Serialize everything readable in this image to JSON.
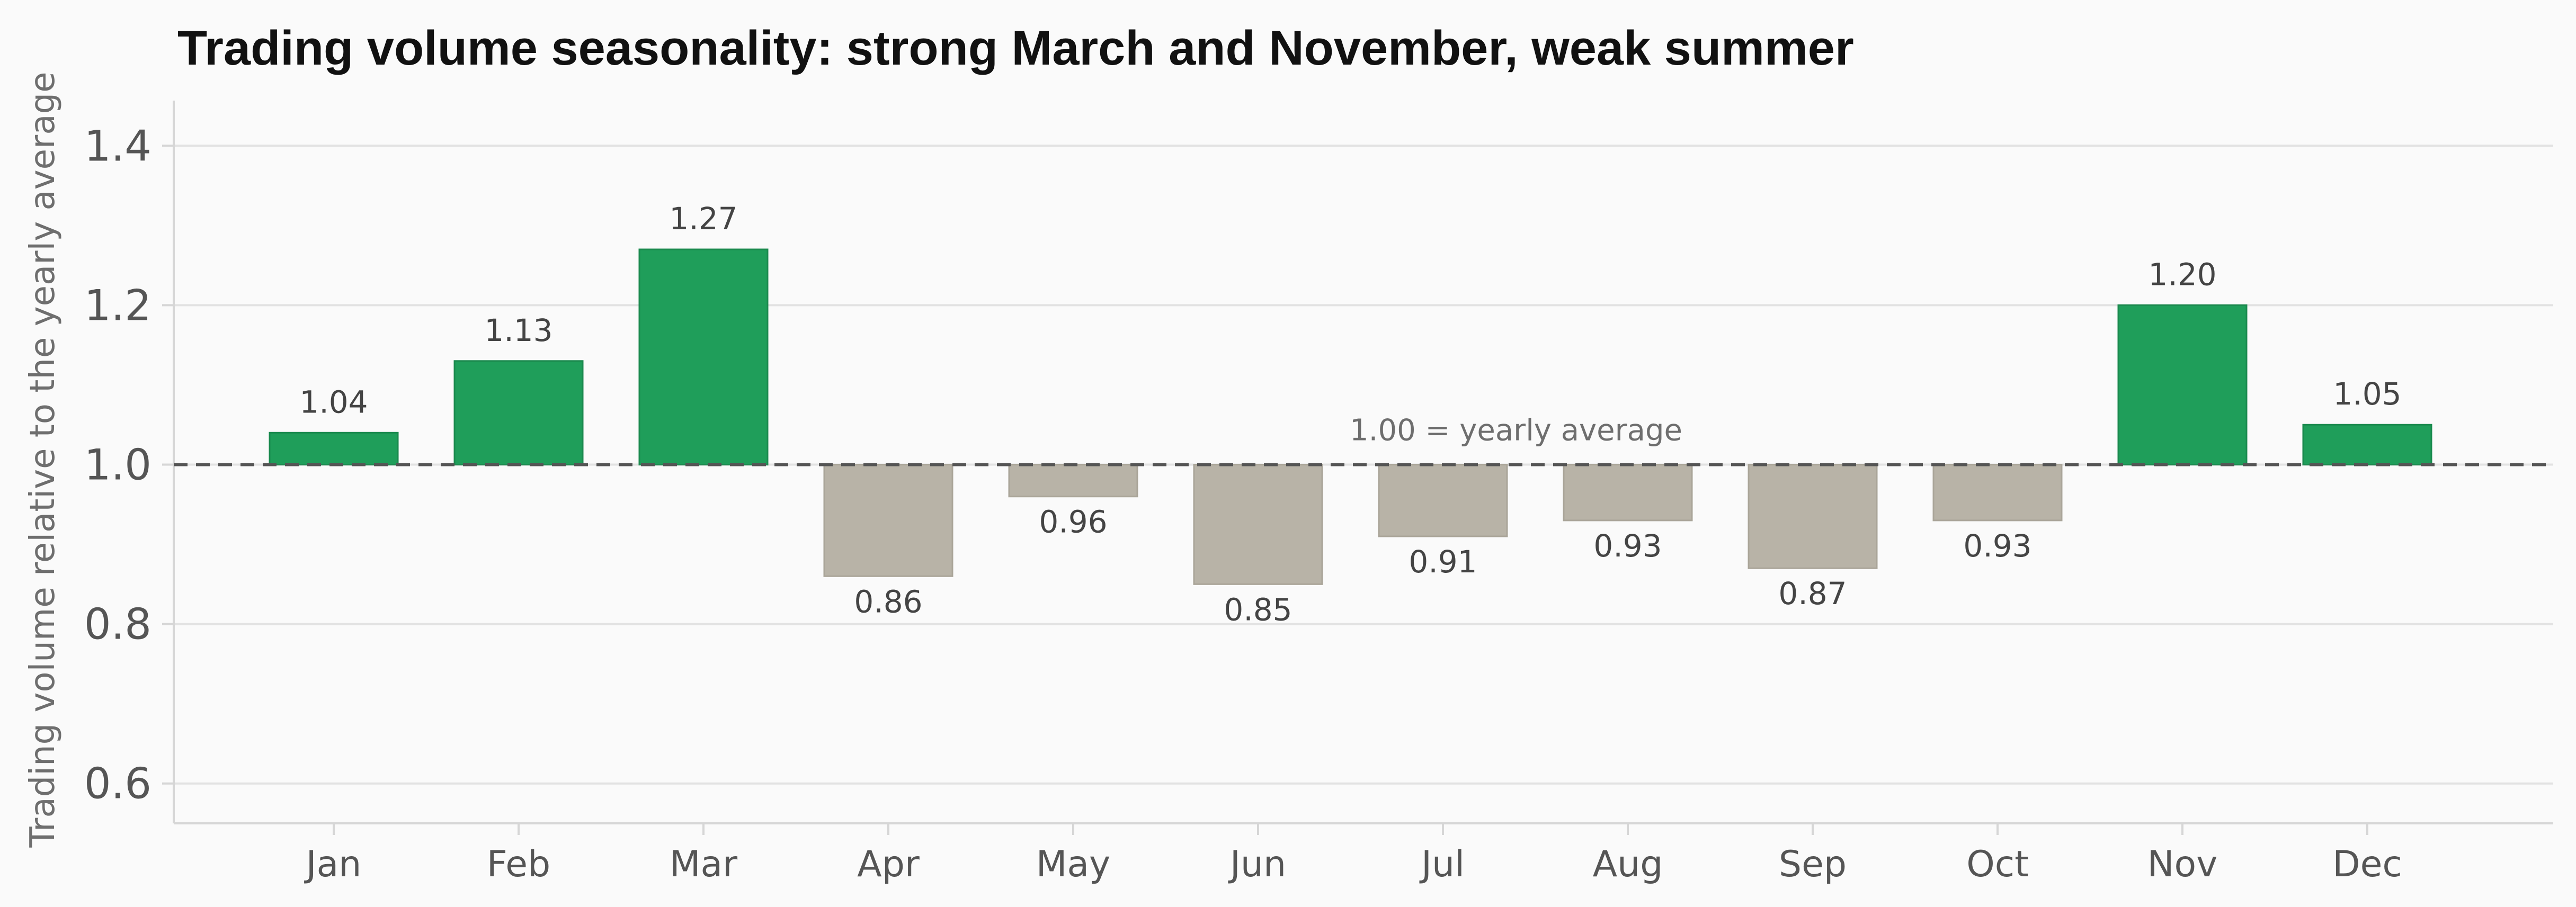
{
  "chart_data": {
    "type": "bar",
    "title": "Trading volume seasonality: strong March and November, weak summer",
    "xlabel": "",
    "ylabel": "Trading volume relative to the yearly average",
    "categories": [
      "Jan",
      "Feb",
      "Mar",
      "Apr",
      "May",
      "Jun",
      "Jul",
      "Aug",
      "Sep",
      "Oct",
      "Nov",
      "Dec"
    ],
    "values": [
      1.04,
      1.13,
      1.27,
      0.86,
      0.96,
      0.85,
      0.91,
      0.93,
      0.87,
      0.93,
      1.2,
      1.05
    ],
    "value_labels": [
      "1.04",
      "1.13",
      "1.27",
      "0.86",
      "0.96",
      "0.85",
      "0.91",
      "0.93",
      "0.87",
      "0.93",
      "1.20",
      "1.05"
    ],
    "baseline": 1.0,
    "reference_line_label": "1.00 = yearly average",
    "ylim": [
      0.55,
      1.45
    ],
    "yticks": [
      0.6,
      0.8,
      1.0,
      1.2,
      1.4
    ],
    "ytick_labels": [
      "0.6",
      "0.8",
      "1.0",
      "1.2",
      "1.4"
    ],
    "grid": true,
    "colors": {
      "above_average": "#1f9e5a",
      "below_average": "#b8b3a7",
      "reference_line": "#555555",
      "grid": "#e2e2e2",
      "axis": "#d6d6d6",
      "background": "#fafafa"
    }
  }
}
